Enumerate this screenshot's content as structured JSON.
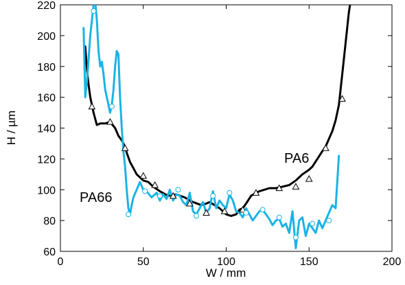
{
  "chart_data": {
    "type": "line",
    "xlabel": "W / mm",
    "ylabel": "H / µm",
    "xlim": [
      0,
      200
    ],
    "ylim": [
      60,
      220
    ],
    "xticks": [
      "0",
      "50",
      "100",
      "150",
      "200"
    ],
    "yticks": [
      "60",
      "80",
      "100",
      "120",
      "140",
      "160",
      "180",
      "200",
      "220"
    ],
    "grid": false,
    "legend": "none",
    "series_labels": [
      "PA6",
      "PA66"
    ],
    "colors": {
      "PA6": "#000000",
      "PA66": "#1ab3e6"
    },
    "series": [
      {
        "name": "PA6",
        "marker": "triangle-open",
        "x": [
          15,
          16,
          17,
          18,
          19,
          20,
          22,
          24,
          27,
          30,
          33,
          35,
          37,
          39,
          40,
          42,
          44,
          46,
          48,
          50,
          53,
          56,
          60,
          65,
          70,
          75,
          80,
          85,
          88,
          90,
          93,
          96,
          98,
          100,
          103,
          106,
          108,
          110,
          112,
          115,
          118,
          120,
          123,
          126,
          130,
          134,
          138,
          142,
          146,
          150,
          152,
          155,
          158,
          160,
          162,
          164,
          166,
          168,
          170,
          172,
          174,
          175
        ],
        "y": [
          193,
          178,
          168,
          160,
          155,
          150,
          142,
          143,
          143,
          144,
          140,
          135,
          132,
          128,
          124,
          118,
          114,
          110,
          108,
          106,
          105,
          102,
          99,
          96,
          97,
          95,
          92,
          90,
          91,
          92,
          90,
          88,
          86,
          84,
          83,
          84,
          87,
          88,
          91,
          96,
          98,
          99,
          100,
          101,
          101,
          102,
          103,
          106,
          110,
          113,
          115,
          120,
          125,
          128,
          133,
          138,
          145,
          155,
          175,
          195,
          215,
          222
        ],
        "markers_x": [
          19,
          30,
          39,
          50,
          57,
          68,
          78,
          88,
          99,
          110,
          118,
          132,
          142,
          150,
          160,
          170
        ],
        "markers_y": [
          154,
          144,
          127,
          109,
          103,
          96,
          91,
          85,
          86,
          87,
          98,
          101,
          102,
          107,
          127,
          159
        ]
      },
      {
        "name": "PA66",
        "marker": "circle-open",
        "x": [
          14,
          15,
          16,
          17,
          18,
          19,
          20,
          21,
          22,
          23,
          24,
          25,
          26,
          27,
          28,
          29,
          30,
          31,
          32,
          33,
          34,
          35,
          36,
          37,
          38,
          39,
          40,
          41,
          42,
          43,
          44,
          46,
          48,
          50,
          52,
          55,
          58,
          60,
          62,
          64,
          66,
          68,
          70,
          72,
          74,
          76,
          78,
          80,
          82,
          84,
          86,
          88,
          90,
          92,
          94,
          96,
          98,
          100,
          102,
          104,
          106,
          108,
          110,
          112,
          114,
          116,
          118,
          120,
          122,
          124,
          126,
          128,
          130,
          132,
          134,
          136,
          138,
          140,
          142,
          144,
          146,
          148,
          150,
          152,
          154,
          156,
          158,
          160,
          162,
          164,
          166,
          168
        ],
        "y": [
          205,
          160,
          170,
          185,
          200,
          210,
          220,
          222,
          210,
          190,
          180,
          183,
          175,
          165,
          160,
          155,
          150,
          155,
          165,
          180,
          190,
          188,
          160,
          140,
          125,
          115,
          100,
          88,
          84,
          90,
          95,
          100,
          105,
          100,
          99,
          95,
          98,
          93,
          97,
          94,
          100,
          93,
          97,
          96,
          92,
          90,
          98,
          86,
          84,
          88,
          92,
          85,
          88,
          99,
          88,
          93,
          90,
          88,
          97,
          93,
          86,
          85,
          82,
          88,
          84,
          80,
          83,
          86,
          87,
          84,
          81,
          77,
          80,
          81,
          76,
          78,
          72,
          86,
          62,
          80,
          82,
          70,
          78,
          75,
          72,
          80,
          75,
          80,
          85,
          90,
          88,
          122
        ],
        "markers_x": [
          20,
          31,
          41,
          51,
          60,
          71,
          82,
          92,
          102,
          112,
          122,
          132,
          142,
          152,
          162
        ],
        "markers_y": [
          216,
          154,
          84,
          99,
          96,
          100,
          83,
          96,
          98,
          85,
          87,
          82,
          69,
          78,
          80
        ]
      }
    ]
  }
}
